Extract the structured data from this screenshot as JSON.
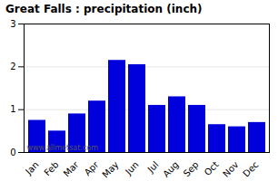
{
  "chart_data": {
    "type": "bar",
    "title": "Great Falls : precipitation (inch)",
    "categories": [
      "Jan",
      "Feb",
      "Mar",
      "Apr",
      "May",
      "Jun",
      "Jul",
      "Aug",
      "Sep",
      "Oct",
      "Nov",
      "Dec"
    ],
    "values": [
      0.75,
      0.5,
      0.9,
      1.2,
      2.15,
      2.05,
      1.1,
      1.3,
      1.1,
      0.65,
      0.6,
      0.7
    ],
    "color": "#0000DD",
    "ylim": [
      0,
      3
    ],
    "yticks": [
      0,
      1,
      2,
      3
    ],
    "grid": true,
    "annotations": [
      "www.allmetsat.com"
    ]
  }
}
